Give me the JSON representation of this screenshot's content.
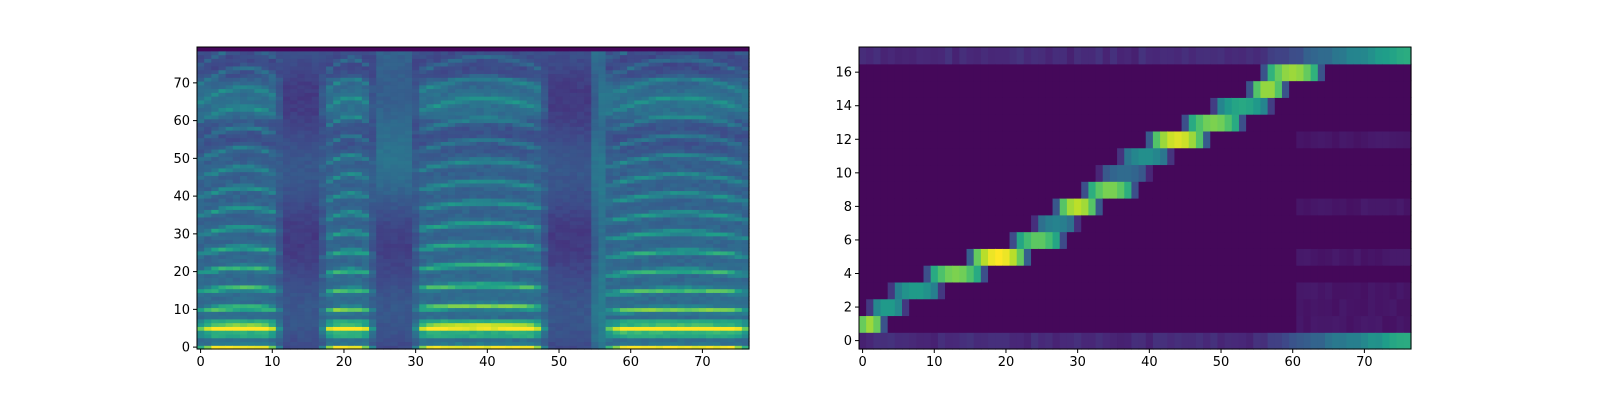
{
  "figure": {
    "background": "#ffffff",
    "colormap": "viridis"
  },
  "chart_data": [
    {
      "type": "heatmap",
      "name": "mel-spectrogram",
      "title": "",
      "xlabel": "",
      "ylabel": "",
      "xlim": [
        -0.5,
        76.5
      ],
      "ylim": [
        -0.5,
        79.5
      ],
      "x_ticks": [
        0,
        10,
        20,
        30,
        40,
        50,
        60,
        70
      ],
      "y_ticks": [
        0,
        10,
        20,
        30,
        40,
        50,
        60,
        70
      ],
      "n_cols": 77,
      "n_rows": 80,
      "silence_frames": [
        [
          12,
          16
        ],
        [
          25,
          29
        ],
        [
          49,
          55
        ]
      ],
      "voiced_segments": [
        [
          0,
          11,
          5.0
        ],
        [
          17,
          24,
          4.8
        ],
        [
          30,
          48,
          5.2
        ],
        [
          57,
          76,
          4.8
        ]
      ]
    },
    {
      "type": "heatmap",
      "name": "alignment",
      "title": "",
      "xlabel": "",
      "ylabel": "",
      "xlim": [
        -0.5,
        76.5
      ],
      "ylim": [
        -0.5,
        17.5
      ],
      "x_ticks": [
        0,
        10,
        20,
        30,
        40,
        50,
        60,
        70
      ],
      "y_ticks": [
        0,
        2,
        4,
        6,
        8,
        10,
        12,
        14,
        16
      ],
      "n_cols": 77,
      "n_rows": 18,
      "alignment_path": [
        {
          "row": 1,
          "start": 0,
          "end": 2,
          "peak": 0.85
        },
        {
          "row": 2,
          "start": 2,
          "end": 5,
          "peak": 0.55
        },
        {
          "row": 3,
          "start": 5,
          "end": 10,
          "peak": 0.55
        },
        {
          "row": 4,
          "start": 10,
          "end": 16,
          "peak": 0.8
        },
        {
          "row": 5,
          "start": 16,
          "end": 22,
          "peak": 1.0
        },
        {
          "row": 6,
          "start": 22,
          "end": 27,
          "peak": 0.75
        },
        {
          "row": 7,
          "start": 25,
          "end": 29,
          "peak": 0.45
        },
        {
          "row": 8,
          "start": 28,
          "end": 32,
          "peak": 0.9
        },
        {
          "row": 9,
          "start": 32,
          "end": 37,
          "peak": 0.8
        },
        {
          "row": 10,
          "start": 34,
          "end": 39,
          "peak": 0.35
        },
        {
          "row": 11,
          "start": 37,
          "end": 42,
          "peak": 0.5
        },
        {
          "row": 12,
          "start": 41,
          "end": 47,
          "peak": 0.95
        },
        {
          "row": 13,
          "start": 46,
          "end": 52,
          "peak": 0.8
        },
        {
          "row": 14,
          "start": 50,
          "end": 56,
          "peak": 0.6
        },
        {
          "row": 15,
          "start": 55,
          "end": 58,
          "peak": 0.85
        },
        {
          "row": 16,
          "start": 57,
          "end": 63,
          "peak": 0.85
        }
      ],
      "border_rows": [
        0,
        17
      ]
    }
  ]
}
